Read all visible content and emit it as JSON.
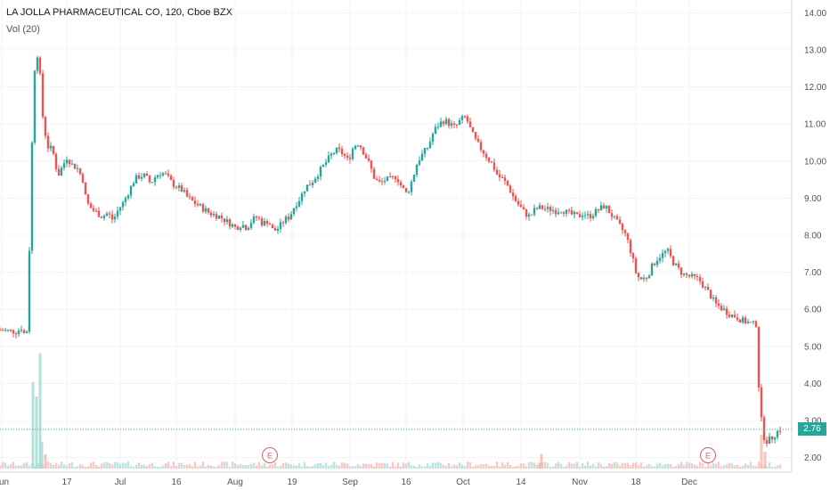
{
  "header": {
    "title": "LA JOLLA PHARMACEUTICAL CO, 120, Cboe BZX",
    "volume_label": "Vol (20)"
  },
  "price_badge": "2.76",
  "colors": {
    "up": "#26a69a",
    "down": "#ef5350",
    "vol_up": "#9fd9d3",
    "vol_down": "#f7b2b0",
    "grid": "#f0f3fa",
    "axis_text": "#50535e"
  },
  "chart_data": {
    "type": "candlestick",
    "title": "LA JOLLA PHARMACEUTICAL CO, 120, Cboe BZX",
    "y_axis": {
      "min": 1.8,
      "max": 14.2,
      "ticks": [
        "2.00",
        "3.00",
        "4.00",
        "5.00",
        "6.00",
        "7.00",
        "8.00",
        "9.00",
        "10.00",
        "11.00",
        "12.00",
        "13.00",
        "14.00"
      ],
      "position": "right"
    },
    "x_axis": {
      "ticks": [
        "Jun",
        "17",
        "Jul",
        "16",
        "Aug",
        "19",
        "Sep",
        "16",
        "Oct",
        "14",
        "Nov",
        "18",
        "Dec"
      ],
      "tick_index": [
        2,
        75,
        135,
        198,
        264,
        328,
        393,
        456,
        520,
        585,
        651,
        714,
        774
      ]
    },
    "price_path": [
      [
        0,
        5.45
      ],
      [
        22,
        5.4
      ],
      [
        27,
        5.5
      ],
      [
        30,
        5.35
      ],
      [
        34,
        5.45
      ],
      [
        38,
        9.8
      ],
      [
        42,
        12.5
      ],
      [
        46,
        13.0
      ],
      [
        51,
        11.2
      ],
      [
        56,
        10.4
      ],
      [
        62,
        10.3
      ],
      [
        68,
        9.6
      ],
      [
        72,
        9.8
      ],
      [
        78,
        10.1
      ],
      [
        84,
        9.9
      ],
      [
        90,
        9.8
      ],
      [
        96,
        9.5
      ],
      [
        100,
        8.9
      ],
      [
        106,
        8.7
      ],
      [
        112,
        8.6
      ],
      [
        118,
        8.5
      ],
      [
        124,
        8.6
      ],
      [
        130,
        8.4
      ],
      [
        136,
        8.7
      ],
      [
        142,
        8.9
      ],
      [
        148,
        9.2
      ],
      [
        154,
        9.5
      ],
      [
        160,
        9.6
      ],
      [
        166,
        9.6
      ],
      [
        172,
        9.4
      ],
      [
        178,
        9.6
      ],
      [
        184,
        9.7
      ],
      [
        190,
        9.6
      ],
      [
        196,
        9.4
      ],
      [
        202,
        9.3
      ],
      [
        208,
        9.2
      ],
      [
        214,
        9.0
      ],
      [
        220,
        8.9
      ],
      [
        226,
        8.8
      ],
      [
        232,
        8.7
      ],
      [
        238,
        8.6
      ],
      [
        244,
        8.55
      ],
      [
        250,
        8.5
      ],
      [
        256,
        8.4
      ],
      [
        262,
        8.3
      ],
      [
        268,
        8.2
      ],
      [
        274,
        8.3
      ],
      [
        280,
        8.2
      ],
      [
        286,
        8.4
      ],
      [
        292,
        8.5
      ],
      [
        298,
        8.3
      ],
      [
        304,
        8.4
      ],
      [
        310,
        8.1
      ],
      [
        316,
        8.2
      ],
      [
        322,
        8.4
      ],
      [
        328,
        8.5
      ],
      [
        334,
        8.8
      ],
      [
        340,
        9.0
      ],
      [
        346,
        9.3
      ],
      [
        352,
        9.4
      ],
      [
        358,
        9.6
      ],
      [
        364,
        9.8
      ],
      [
        370,
        10.0
      ],
      [
        376,
        10.2
      ],
      [
        382,
        10.3
      ],
      [
        388,
        10.2
      ],
      [
        394,
        10.0
      ],
      [
        400,
        10.4
      ],
      [
        406,
        10.5
      ],
      [
        412,
        10.2
      ],
      [
        418,
        9.9
      ],
      [
        424,
        9.5
      ],
      [
        430,
        9.4
      ],
      [
        436,
        9.5
      ],
      [
        442,
        9.5
      ],
      [
        448,
        9.6
      ],
      [
        454,
        9.3
      ],
      [
        460,
        9.1
      ],
      [
        466,
        9.5
      ],
      [
        472,
        10.0
      ],
      [
        478,
        10.2
      ],
      [
        484,
        10.4
      ],
      [
        490,
        10.8
      ],
      [
        496,
        11.0
      ],
      [
        502,
        11.1
      ],
      [
        508,
        11.0
      ],
      [
        514,
        10.9
      ],
      [
        520,
        11.1
      ],
      [
        526,
        11.2
      ],
      [
        532,
        10.8
      ],
      [
        538,
        10.5
      ],
      [
        544,
        10.3
      ],
      [
        550,
        10.1
      ],
      [
        556,
        9.9
      ],
      [
        562,
        9.6
      ],
      [
        568,
        9.5
      ],
      [
        574,
        9.3
      ],
      [
        580,
        9.0
      ],
      [
        586,
        8.8
      ],
      [
        592,
        8.6
      ],
      [
        598,
        8.5
      ],
      [
        604,
        8.7
      ],
      [
        610,
        8.75
      ],
      [
        616,
        8.7
      ],
      [
        622,
        8.7
      ],
      [
        628,
        8.65
      ],
      [
        634,
        8.7
      ],
      [
        640,
        8.6
      ],
      [
        646,
        8.55
      ],
      [
        652,
        8.5
      ],
      [
        658,
        8.6
      ],
      [
        664,
        8.5
      ],
      [
        670,
        8.6
      ],
      [
        676,
        8.7
      ],
      [
        682,
        8.8
      ],
      [
        688,
        8.6
      ],
      [
        694,
        8.4
      ],
      [
        700,
        8.2
      ],
      [
        706,
        8.0
      ],
      [
        712,
        7.5
      ],
      [
        718,
        6.9
      ],
      [
        724,
        6.8
      ],
      [
        730,
        6.9
      ],
      [
        736,
        7.2
      ],
      [
        742,
        7.4
      ],
      [
        748,
        7.5
      ],
      [
        752,
        7.6
      ],
      [
        758,
        7.3
      ],
      [
        764,
        7.1
      ],
      [
        770,
        6.95
      ],
      [
        776,
        6.9
      ],
      [
        782,
        6.85
      ],
      [
        788,
        6.8
      ],
      [
        794,
        6.6
      ],
      [
        800,
        6.4
      ],
      [
        806,
        6.15
      ],
      [
        812,
        6.05
      ],
      [
        818,
        5.95
      ],
      [
        824,
        5.85
      ],
      [
        830,
        5.8
      ],
      [
        836,
        5.7
      ],
      [
        842,
        5.65
      ],
      [
        848,
        5.6
      ],
      [
        852,
        5.6
      ],
      [
        856,
        3.4
      ],
      [
        860,
        2.6
      ],
      [
        864,
        2.45
      ],
      [
        868,
        2.5
      ],
      [
        872,
        2.6
      ],
      [
        878,
        2.76
      ]
    ],
    "volume_spikes": [
      [
        37,
        3.6
      ],
      [
        41,
        3.0
      ],
      [
        45,
        4.8
      ],
      [
        47,
        1.1
      ],
      [
        51,
        0.6
      ],
      [
        606,
        0.25
      ],
      [
        608,
        0.6
      ],
      [
        855,
        1.4
      ],
      [
        859,
        0.7
      ]
    ],
    "earnings_markers": [
      {
        "label": "E",
        "index": 303
      },
      {
        "label": "E",
        "index": 795
      }
    ],
    "last_price": 2.76,
    "volume_indicator": "Vol (20)"
  }
}
